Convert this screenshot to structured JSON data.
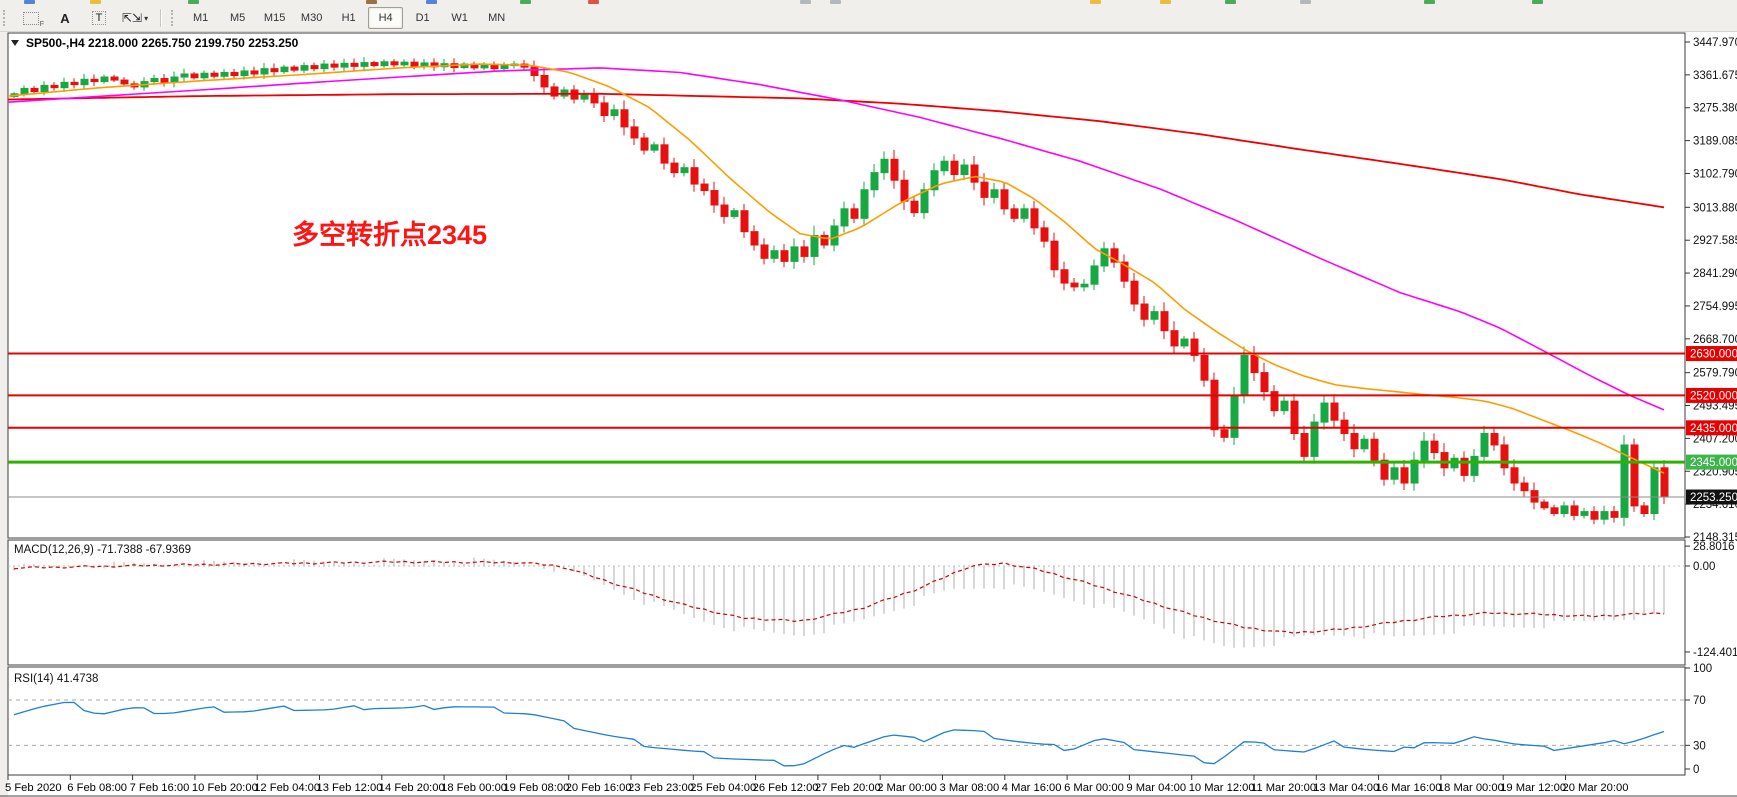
{
  "toolbar": {
    "timeframes": [
      "M1",
      "M5",
      "M15",
      "M30",
      "H1",
      "H4",
      "D1",
      "W1",
      "MN"
    ],
    "active_timeframe": "H4",
    "text_tool_a": "A",
    "text_tool_t": "T",
    "arrows_caret": "▾"
  },
  "annotation": {
    "text": "多空转折点2345",
    "color": "#ff1414"
  },
  "chart_data": {
    "type": "candlestick",
    "symbol": "SP500-",
    "timeframe": "H4",
    "title_line": "SP500-,H4  2218.000 2265.750 2199.750 2253.250",
    "ohlc_current": [
      2218.0,
      2265.75,
      2199.75,
      2253.25
    ],
    "y_axis_range": [
      2148.315,
      3447.97
    ],
    "y_ticks": [
      {
        "v": 3447.97,
        "label": "3447.970"
      },
      {
        "v": 3361.675,
        "label": "3361.675"
      },
      {
        "v": 3275.38,
        "label": "3275.380"
      },
      {
        "v": 3189.085,
        "label": "3189.085"
      },
      {
        "v": 3102.79,
        "label": "3102.790"
      },
      {
        "v": 3013.88,
        "label": "3013.880"
      },
      {
        "v": 2927.585,
        "label": "2927.585"
      },
      {
        "v": 2841.29,
        "label": "2841.290"
      },
      {
        "v": 2754.995,
        "label": "2754.995"
      },
      {
        "v": 2668.7,
        "label": "2668.700"
      },
      {
        "v": 2579.79,
        "label": "2579.790"
      },
      {
        "v": 2493.495,
        "label": "2493.495"
      },
      {
        "v": 2407.2,
        "label": "2407.200"
      },
      {
        "v": 2320.905,
        "label": "2320.905"
      },
      {
        "v": 2234.61,
        "label": "2234.610"
      },
      {
        "v": 2148.315,
        "label": "2148.315"
      }
    ],
    "levels": [
      {
        "v": 2630.0,
        "label": "2630.000",
        "line": "#e60000",
        "tag": "#e60000",
        "lw": 2
      },
      {
        "v": 2520.0,
        "label": "2520.000",
        "line": "#e60000",
        "tag": "#e60000",
        "lw": 2
      },
      {
        "v": 2435.0,
        "label": "2435.000",
        "line": "#e60000",
        "tag": "#e60000",
        "lw": 2
      },
      {
        "v": 2345.0,
        "label": "2345.000",
        "line": "#2db200",
        "tag": "#3cb54a",
        "lw": 3
      },
      {
        "v": 2253.25,
        "label": "2253.250",
        "line": "#8c8c8c",
        "tag": "#111111",
        "lw": 1
      }
    ],
    "x_axis_labels": [
      "5 Feb 2020",
      "6 Feb 08:00",
      "7 Feb 16:00",
      "10 Feb 20:00",
      "12 Feb 04:00",
      "13 Feb 12:00",
      "14 Feb 20:00",
      "18 Feb 00:00",
      "19 Feb 08:00",
      "20 Feb 16:00",
      "23 Feb 23:00",
      "25 Feb 04:00",
      "26 Feb 12:00",
      "27 Feb 20:00",
      "2 Mar 00:00",
      "3 Mar 08:00",
      "4 Mar 16:00",
      "6 Mar 00:00",
      "9 Mar 04:00",
      "10 Mar 12:00",
      "11 Mar 20:00",
      "13 Mar 04:00",
      "16 Mar 16:00",
      "18 Mar 00:00",
      "19 Mar 12:00",
      "20 Mar 20:00"
    ],
    "first_open": 3305,
    "closes": [
      3312,
      3326,
      3318,
      3334,
      3328,
      3342,
      3336,
      3350,
      3344,
      3356,
      3348,
      3338,
      3330,
      3344,
      3352,
      3342,
      3356,
      3364,
      3354,
      3366,
      3358,
      3368,
      3360,
      3372,
      3364,
      3378,
      3370,
      3382,
      3374,
      3386,
      3378,
      3390,
      3382,
      3392,
      3384,
      3394,
      3386,
      3396,
      3388,
      3395,
      3385,
      3393,
      3383,
      3391,
      3381,
      3390,
      3380,
      3388,
      3378,
      3386,
      3390,
      3382,
      3360,
      3330,
      3306,
      3322,
      3298,
      3312,
      3288,
      3255,
      3270,
      3225,
      3196,
      3164,
      3178,
      3130,
      3105,
      3118,
      3075,
      3058,
      3020,
      2990,
      3005,
      2950,
      2915,
      2880,
      2900,
      2872,
      2910,
      2885,
      2940,
      2915,
      2965,
      3010,
      2985,
      3060,
      3105,
      3140,
      3085,
      3030,
      3000,
      3060,
      3110,
      3135,
      3100,
      3125,
      3080,
      3040,
      3060,
      3010,
      2985,
      3010,
      2960,
      2925,
      2850,
      2815,
      2805,
      2812,
      2860,
      2905,
      2870,
      2820,
      2760,
      2720,
      2740,
      2690,
      2650,
      2668,
      2625,
      2560,
      2430,
      2410,
      2520,
      2625,
      2580,
      2530,
      2480,
      2505,
      2420,
      2360,
      2450,
      2500,
      2455,
      2420,
      2380,
      2405,
      2350,
      2300,
      2330,
      2290,
      2350,
      2400,
      2370,
      2330,
      2355,
      2310,
      2360,
      2420,
      2390,
      2330,
      2290,
      2270,
      2240,
      2225,
      2210,
      2230,
      2205,
      2215,
      2195,
      2215,
      2200,
      2390,
      2230,
      2210,
      2330,
      2253.25
    ],
    "ma": {
      "orange": [
        [
          8,
          3306
        ],
        [
          100,
          3328
        ],
        [
          200,
          3346
        ],
        [
          300,
          3362
        ],
        [
          400,
          3380
        ],
        [
          480,
          3390
        ],
        [
          530,
          3387
        ],
        [
          570,
          3368
        ],
        [
          610,
          3330
        ],
        [
          650,
          3275
        ],
        [
          690,
          3190
        ],
        [
          730,
          3090
        ],
        [
          770,
          3000
        ],
        [
          800,
          2945
        ],
        [
          830,
          2930
        ],
        [
          860,
          2960
        ],
        [
          900,
          3025
        ],
        [
          940,
          3075
        ],
        [
          975,
          3095
        ],
        [
          1005,
          3080
        ],
        [
          1035,
          3035
        ],
        [
          1065,
          2975
        ],
        [
          1095,
          2905
        ],
        [
          1125,
          2862
        ],
        [
          1155,
          2815
        ],
        [
          1185,
          2745
        ],
        [
          1215,
          2690
        ],
        [
          1245,
          2640
        ],
        [
          1275,
          2600
        ],
        [
          1305,
          2570
        ],
        [
          1335,
          2548
        ],
        [
          1365,
          2538
        ],
        [
          1395,
          2530
        ],
        [
          1425,
          2522
        ],
        [
          1455,
          2515
        ],
        [
          1485,
          2505
        ],
        [
          1510,
          2488
        ],
        [
          1540,
          2458
        ],
        [
          1570,
          2428
        ],
        [
          1600,
          2395
        ],
        [
          1630,
          2358
        ],
        [
          1664,
          2316
        ]
      ],
      "magenta": [
        [
          8,
          3290
        ],
        [
          200,
          3322
        ],
        [
          350,
          3348
        ],
        [
          500,
          3372
        ],
        [
          600,
          3380
        ],
        [
          680,
          3368
        ],
        [
          760,
          3336
        ],
        [
          840,
          3296
        ],
        [
          920,
          3250
        ],
        [
          1000,
          3195
        ],
        [
          1080,
          3135
        ],
        [
          1160,
          3062
        ],
        [
          1240,
          2975
        ],
        [
          1320,
          2880
        ],
        [
          1400,
          2790
        ],
        [
          1460,
          2740
        ],
        [
          1500,
          2697
        ],
        [
          1545,
          2635
        ],
        [
          1590,
          2572
        ],
        [
          1630,
          2520
        ],
        [
          1664,
          2482
        ]
      ],
      "red": [
        [
          8,
          3297
        ],
        [
          200,
          3306
        ],
        [
          400,
          3311
        ],
        [
          600,
          3312
        ],
        [
          800,
          3300
        ],
        [
          900,
          3286
        ],
        [
          1000,
          3266
        ],
        [
          1100,
          3240
        ],
        [
          1200,
          3206
        ],
        [
          1300,
          3166
        ],
        [
          1400,
          3128
        ],
        [
          1500,
          3088
        ],
        [
          1580,
          3048
        ],
        [
          1664,
          3014
        ]
      ]
    }
  },
  "macd": {
    "display": "MACD(12,26,9) -71.7388 -67.9369",
    "params": [
      12,
      26,
      9
    ],
    "value": -71.7388,
    "signal_value": -67.9369,
    "axis_labels": [
      "28.8016",
      "0.00",
      "-124.4011"
    ],
    "axis_values": [
      28.8016,
      0,
      -124.4011
    ],
    "hist_points": [
      [
        8,
        -2
      ],
      [
        150,
        3
      ],
      [
        300,
        5
      ],
      [
        450,
        8
      ],
      [
        520,
        6
      ],
      [
        560,
        -5
      ],
      [
        600,
        -25
      ],
      [
        650,
        -55
      ],
      [
        700,
        -78
      ],
      [
        750,
        -95
      ],
      [
        800,
        -100
      ],
      [
        850,
        -85
      ],
      [
        900,
        -60
      ],
      [
        950,
        -35
      ],
      [
        1000,
        -28
      ],
      [
        1050,
        -40
      ],
      [
        1100,
        -58
      ],
      [
        1150,
        -80
      ],
      [
        1200,
        -110
      ],
      [
        1230,
        -119
      ],
      [
        1270,
        -112
      ],
      [
        1310,
        -102
      ],
      [
        1350,
        -98
      ],
      [
        1390,
        -105
      ],
      [
        1430,
        -98
      ],
      [
        1470,
        -90
      ],
      [
        1510,
        -88
      ],
      [
        1550,
        -85
      ],
      [
        1590,
        -80
      ],
      [
        1630,
        -74
      ],
      [
        1664,
        -71.7
      ]
    ],
    "signal_points": [
      [
        8,
        -3
      ],
      [
        200,
        2
      ],
      [
        400,
        6
      ],
      [
        520,
        5
      ],
      [
        560,
        0
      ],
      [
        620,
        -28
      ],
      [
        680,
        -55
      ],
      [
        740,
        -75
      ],
      [
        800,
        -80
      ],
      [
        860,
        -62
      ],
      [
        920,
        -32
      ],
      [
        970,
        0
      ],
      [
        1005,
        4
      ],
      [
        1040,
        -6
      ],
      [
        1090,
        -26
      ],
      [
        1140,
        -48
      ],
      [
        1190,
        -70
      ],
      [
        1240,
        -88
      ],
      [
        1290,
        -97
      ],
      [
        1340,
        -92
      ],
      [
        1390,
        -82
      ],
      [
        1440,
        -73
      ],
      [
        1490,
        -68
      ],
      [
        1540,
        -70
      ],
      [
        1590,
        -73
      ],
      [
        1630,
        -70
      ],
      [
        1664,
        -67.9
      ]
    ]
  },
  "rsi": {
    "display": "RSI(14) 41.4738",
    "period": 14,
    "value": 41.4738,
    "axis_labels": [
      "100",
      "70",
      "30",
      "0"
    ],
    "axis_values": [
      100,
      70,
      30,
      0
    ],
    "levels": [
      70,
      30
    ],
    "points": [
      [
        8,
        58
      ],
      [
        40,
        64
      ],
      [
        70,
        67
      ],
      [
        100,
        58
      ],
      [
        130,
        62
      ],
      [
        170,
        59
      ],
      [
        210,
        62
      ],
      [
        250,
        60
      ],
      [
        290,
        63
      ],
      [
        330,
        61
      ],
      [
        370,
        64
      ],
      [
        410,
        62
      ],
      [
        450,
        65
      ],
      [
        490,
        62
      ],
      [
        530,
        58
      ],
      [
        570,
        48
      ],
      [
        610,
        38
      ],
      [
        650,
        30
      ],
      [
        690,
        24
      ],
      [
        730,
        19
      ],
      [
        770,
        15
      ],
      [
        800,
        13
      ],
      [
        830,
        24
      ],
      [
        860,
        32
      ],
      [
        890,
        39
      ],
      [
        920,
        34
      ],
      [
        950,
        44
      ],
      [
        980,
        41
      ],
      [
        1010,
        35
      ],
      [
        1040,
        30
      ],
      [
        1070,
        27
      ],
      [
        1100,
        36
      ],
      [
        1130,
        29
      ],
      [
        1160,
        24
      ],
      [
        1190,
        19
      ],
      [
        1215,
        15
      ],
      [
        1245,
        33
      ],
      [
        1275,
        28
      ],
      [
        1305,
        24
      ],
      [
        1335,
        32
      ],
      [
        1365,
        27
      ],
      [
        1395,
        23
      ],
      [
        1425,
        34
      ],
      [
        1455,
        31
      ],
      [
        1485,
        38
      ],
      [
        1515,
        31
      ],
      [
        1545,
        27
      ],
      [
        1575,
        29
      ],
      [
        1605,
        31
      ],
      [
        1635,
        35
      ],
      [
        1664,
        41.5
      ]
    ]
  },
  "colors": {
    "bull": "#17a843",
    "bear": "#e61010",
    "ma_fast": "#ff9c00",
    "ma_mid": "#ff00ff",
    "ma_slow": "#f00000",
    "macd_hist": "#c6c6c6",
    "macd_signal": "#d40000",
    "rsi_line": "#1e7fd7",
    "axis_text": "#111111"
  }
}
